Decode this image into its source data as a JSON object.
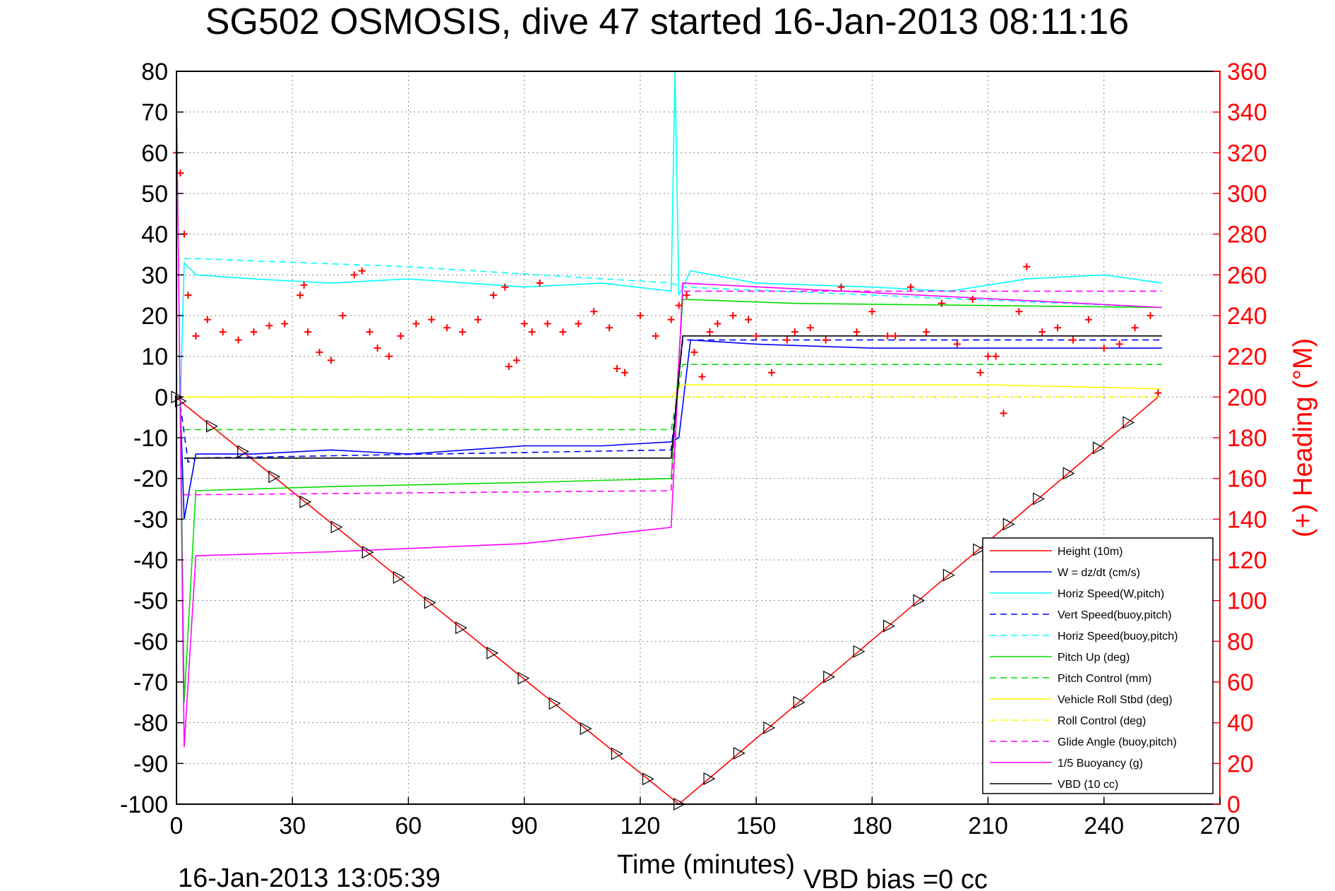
{
  "chart_data": {
    "type": "line",
    "title": "SG502 OSMOSIS, dive 47 started 16-Jan-2013 08:11:16",
    "xlabel": "Time (minutes)",
    "ylabel": "",
    "y2label": "(+) Heading (°M)",
    "xlim": [
      0,
      270
    ],
    "ylim": [
      -100,
      80
    ],
    "y2lim": [
      0,
      360
    ],
    "grid": true,
    "legend_position": "bottom-right",
    "x_ticks": [
      "0",
      "30",
      "60",
      "90",
      "120",
      "150",
      "180",
      "210",
      "240",
      "270"
    ],
    "y_ticks": [
      "80",
      "70",
      "60",
      "50",
      "40",
      "30",
      "20",
      "10",
      "0",
      "-10",
      "-20",
      "-30",
      "-40",
      "-50",
      "-60",
      "-70",
      "-80",
      "-90",
      "-100"
    ],
    "y2_ticks": [
      "360",
      "340",
      "320",
      "300",
      "280",
      "260",
      "240",
      "220",
      "200",
      "180",
      "160",
      "140",
      "120",
      "100",
      "80",
      "60",
      "40",
      "20",
      "0"
    ],
    "footer_left": "16-Jan-2013 13:05:39",
    "footer_right": "VBD bias =0 cc",
    "series": [
      {
        "name": "Height (10m)",
        "color": "#ff0000",
        "style": "solid",
        "x": [
          0,
          1,
          130,
          254
        ],
        "y": [
          0,
          -1,
          -100,
          0
        ]
      },
      {
        "name": "W = dz/dt (cm/s)",
        "color": "#0000ff",
        "style": "solid",
        "x": [
          1,
          2,
          5,
          20,
          40,
          60,
          90,
          110,
          128,
          130,
          133,
          150,
          180,
          200,
          220,
          240,
          255
        ],
        "y": [
          -2,
          -30,
          -14,
          -14,
          -13,
          -14,
          -12,
          -12,
          -11,
          -10,
          14,
          13,
          12,
          12,
          12,
          12,
          12
        ]
      },
      {
        "name": "Horiz Speed(W,pitch)",
        "color": "#00ffff",
        "style": "solid",
        "x": [
          1,
          2,
          5,
          20,
          40,
          60,
          90,
          110,
          128,
          129,
          130,
          133,
          150,
          180,
          200,
          220,
          240,
          255
        ],
        "y": [
          -2,
          33,
          30,
          29,
          28,
          29,
          27,
          28,
          26,
          80,
          25,
          31,
          28,
          27,
          26,
          29,
          30,
          28
        ]
      },
      {
        "name": "Vert Speed(buoy,pitch)",
        "color": "#0000ff",
        "style": "dashed",
        "x": [
          1,
          3,
          5,
          128,
          131,
          255
        ],
        "y": [
          -2,
          -16,
          -15,
          -13,
          14,
          14
        ]
      },
      {
        "name": "Horiz Speed(buoy,pitch)",
        "color": "#00ffff",
        "style": "dashed",
        "x": [
          2,
          5,
          60,
          128,
          131,
          255
        ],
        "y": [
          34,
          34,
          32,
          28,
          27,
          22
        ]
      },
      {
        "name": "Pitch Up (deg)",
        "color": "#00dd00",
        "style": "solid",
        "x": [
          1,
          2,
          5,
          40,
          90,
          128,
          131,
          160,
          255
        ],
        "y": [
          0,
          -75,
          -23,
          -22,
          -21,
          -20,
          24,
          23,
          22
        ]
      },
      {
        "name": "Pitch Control (mm)",
        "color": "#00dd00",
        "style": "dashed",
        "x": [
          2,
          5,
          128,
          131,
          255
        ],
        "y": [
          -8,
          -8,
          -8,
          8,
          8
        ]
      },
      {
        "name": "Vehicle Roll Stbd (deg)",
        "color": "#ffff00",
        "style": "solid",
        "x": [
          0,
          5,
          60,
          128,
          131,
          180,
          210,
          255
        ],
        "y": [
          0,
          0,
          0,
          0,
          3,
          3,
          3,
          2
        ]
      },
      {
        "name": "Roll Control (deg)",
        "color": "#ffff00",
        "style": "dashed",
        "x": [
          0,
          5,
          128,
          131,
          255
        ],
        "y": [
          0,
          0,
          0,
          0,
          0
        ]
      },
      {
        "name": "Glide Angle (buoy,pitch)",
        "color": "#ff00ff",
        "style": "dashed",
        "x": [
          2,
          5,
          128,
          131,
          255
        ],
        "y": [
          -24,
          -24,
          -23,
          26,
          26
        ]
      },
      {
        "name": "1/5 Buoyancy (g)",
        "color": "#ff00ff",
        "style": "solid",
        "x": [
          0,
          2,
          5,
          40,
          90,
          128,
          131,
          255
        ],
        "y": [
          74,
          -86,
          -39,
          -38,
          -36,
          -32,
          28,
          22
        ]
      },
      {
        "name": "VBD (10 cc)",
        "color": "#000000",
        "style": "solid",
        "x": [
          2,
          5,
          128,
          131,
          255
        ],
        "y": [
          -15,
          -15,
          -15,
          15,
          15
        ]
      },
      {
        "name": "(+) Heading",
        "color": "#ff0000",
        "style": "markers",
        "axis": "right",
        "x": [
          0,
          1,
          2,
          3,
          5,
          8,
          12,
          16,
          20,
          24,
          28,
          32,
          33,
          34,
          37,
          40,
          43,
          46,
          48,
          50,
          52,
          55,
          58,
          62,
          66,
          70,
          74,
          78,
          82,
          85,
          86,
          88,
          90,
          92,
          94,
          96,
          100,
          104,
          108,
          112,
          114,
          116,
          120,
          124,
          128,
          130,
          132,
          134,
          136,
          138,
          140,
          144,
          148,
          150,
          154,
          158,
          160,
          164,
          168,
          172,
          176,
          180,
          184,
          186,
          190,
          194,
          198,
          202,
          206,
          208,
          210,
          212,
          214,
          218,
          220,
          224,
          228,
          232,
          236,
          240,
          244,
          248,
          252,
          254
        ],
        "y": [
          320,
          310,
          280,
          250,
          230,
          238,
          232,
          228,
          232,
          235,
          236,
          250,
          255,
          232,
          222,
          218,
          240,
          260,
          262,
          232,
          224,
          220,
          230,
          236,
          238,
          234,
          232,
          238,
          250,
          254,
          215,
          218,
          236,
          232,
          256,
          236,
          232,
          236,
          242,
          234,
          214,
          212,
          240,
          230,
          238,
          245,
          250,
          222,
          210,
          232,
          236,
          240,
          238,
          230,
          212,
          228,
          232,
          234,
          228,
          254,
          232,
          242,
          230,
          230,
          254,
          232,
          246,
          226,
          248,
          212,
          220,
          220,
          192,
          242,
          264,
          232,
          234,
          228,
          238,
          224,
          226,
          234,
          240,
          202
        ]
      }
    ]
  }
}
